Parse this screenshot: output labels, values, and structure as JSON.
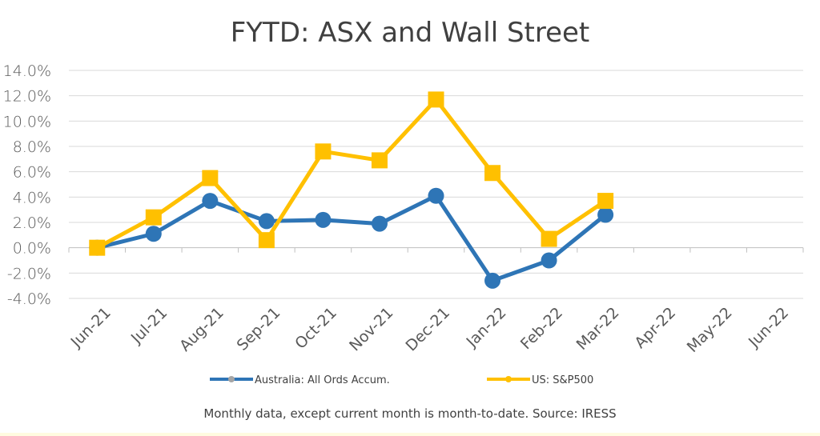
{
  "chart_data": {
    "type": "line",
    "title": "FYTD: ASX and Wall Street",
    "categories": [
      "Jun-21",
      "Jul-21",
      "Aug-21",
      "Sep-21",
      "Oct-21",
      "Nov-21",
      "Dec-21",
      "Jan-22",
      "Feb-22",
      "Mar-22",
      "Apr-22",
      "May-22",
      "Jun-22"
    ],
    "y_ticks": [
      "14.0%",
      "12.0%",
      "10.0%",
      "8.0%",
      "6.0%",
      "4.0%",
      "2.0%",
      "0.0%",
      "-2.0%",
      "-4.0%"
    ],
    "ylim": [
      -4,
      14
    ],
    "grid": true,
    "legend_position": "bottom",
    "series": [
      {
        "name": "Australia: All Ords Accum.",
        "color": "#2e75b6",
        "marker": "circle",
        "values": [
          0.0,
          1.1,
          3.7,
          2.1,
          2.2,
          1.9,
          4.1,
          -2.6,
          -1.0,
          2.6,
          null,
          null,
          null
        ]
      },
      {
        "name": "US: S&P500",
        "color": "#ffc000",
        "marker": "square",
        "values": [
          0.0,
          2.4,
          5.5,
          0.6,
          7.6,
          6.9,
          11.7,
          5.9,
          0.7,
          3.7,
          null,
          null,
          null
        ]
      }
    ],
    "footnote": "Monthly data, except current month is month-to-date.  Source: IRESS"
  }
}
